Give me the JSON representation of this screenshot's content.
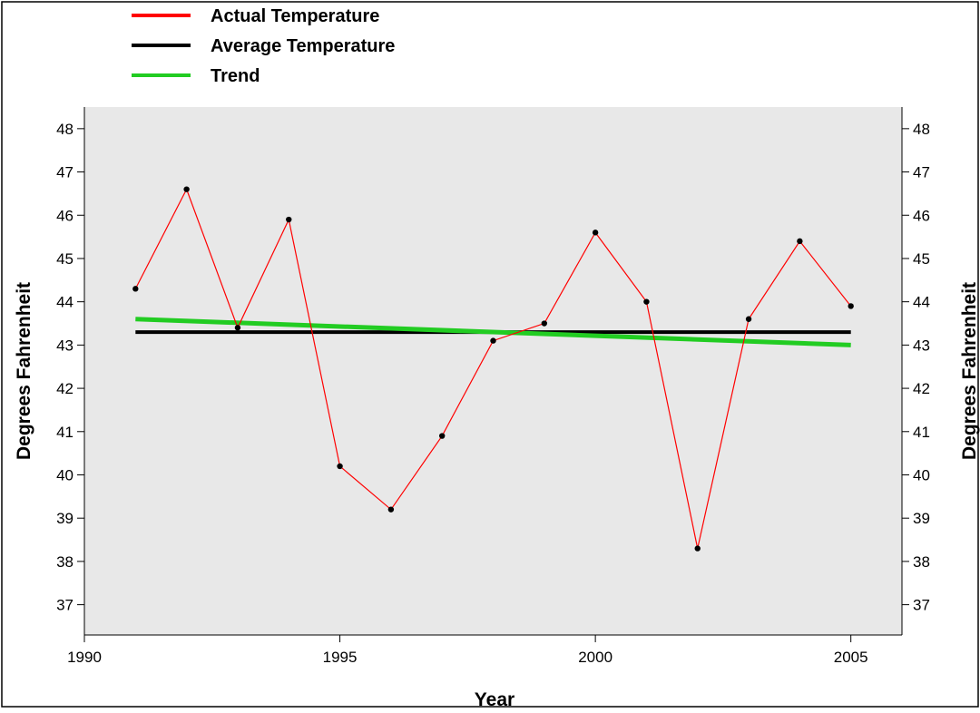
{
  "chart_data": {
    "type": "line",
    "xlabel": "Year",
    "ylabel": "Degrees Fahrenheit",
    "ylabel_right": "Degrees Fahrenheit",
    "xlim": [
      1990,
      2006
    ],
    "ylim": [
      36.3,
      48.5
    ],
    "x_ticks": [
      1990,
      1995,
      2000,
      2005
    ],
    "y_ticks": [
      37,
      38,
      39,
      40,
      41,
      42,
      43,
      44,
      45,
      46,
      47,
      48
    ],
    "grid": false,
    "legend_position": "top-left, above plot",
    "plot_background": "#e8e8e8",
    "series": [
      {
        "name": "Actual Temperature",
        "color": "#ff0000",
        "x": [
          1991,
          1992,
          1993,
          1994,
          1995,
          1996,
          1997,
          1998,
          1999,
          2000,
          2001,
          2002,
          2003,
          2004,
          2005
        ],
        "y": [
          44.3,
          46.6,
          43.4,
          45.9,
          40.2,
          39.2,
          40.9,
          43.1,
          43.5,
          45.6,
          44.0,
          38.3,
          43.6,
          45.4,
          43.9
        ],
        "markers": true
      },
      {
        "name": "Average Temperature",
        "color": "#000000",
        "x": [
          1991,
          2005
        ],
        "y": [
          43.3,
          43.3
        ]
      },
      {
        "name": "Trend",
        "color": "#22cc22",
        "x": [
          1991,
          2005
        ],
        "y": [
          43.6,
          43.0
        ]
      }
    ]
  }
}
